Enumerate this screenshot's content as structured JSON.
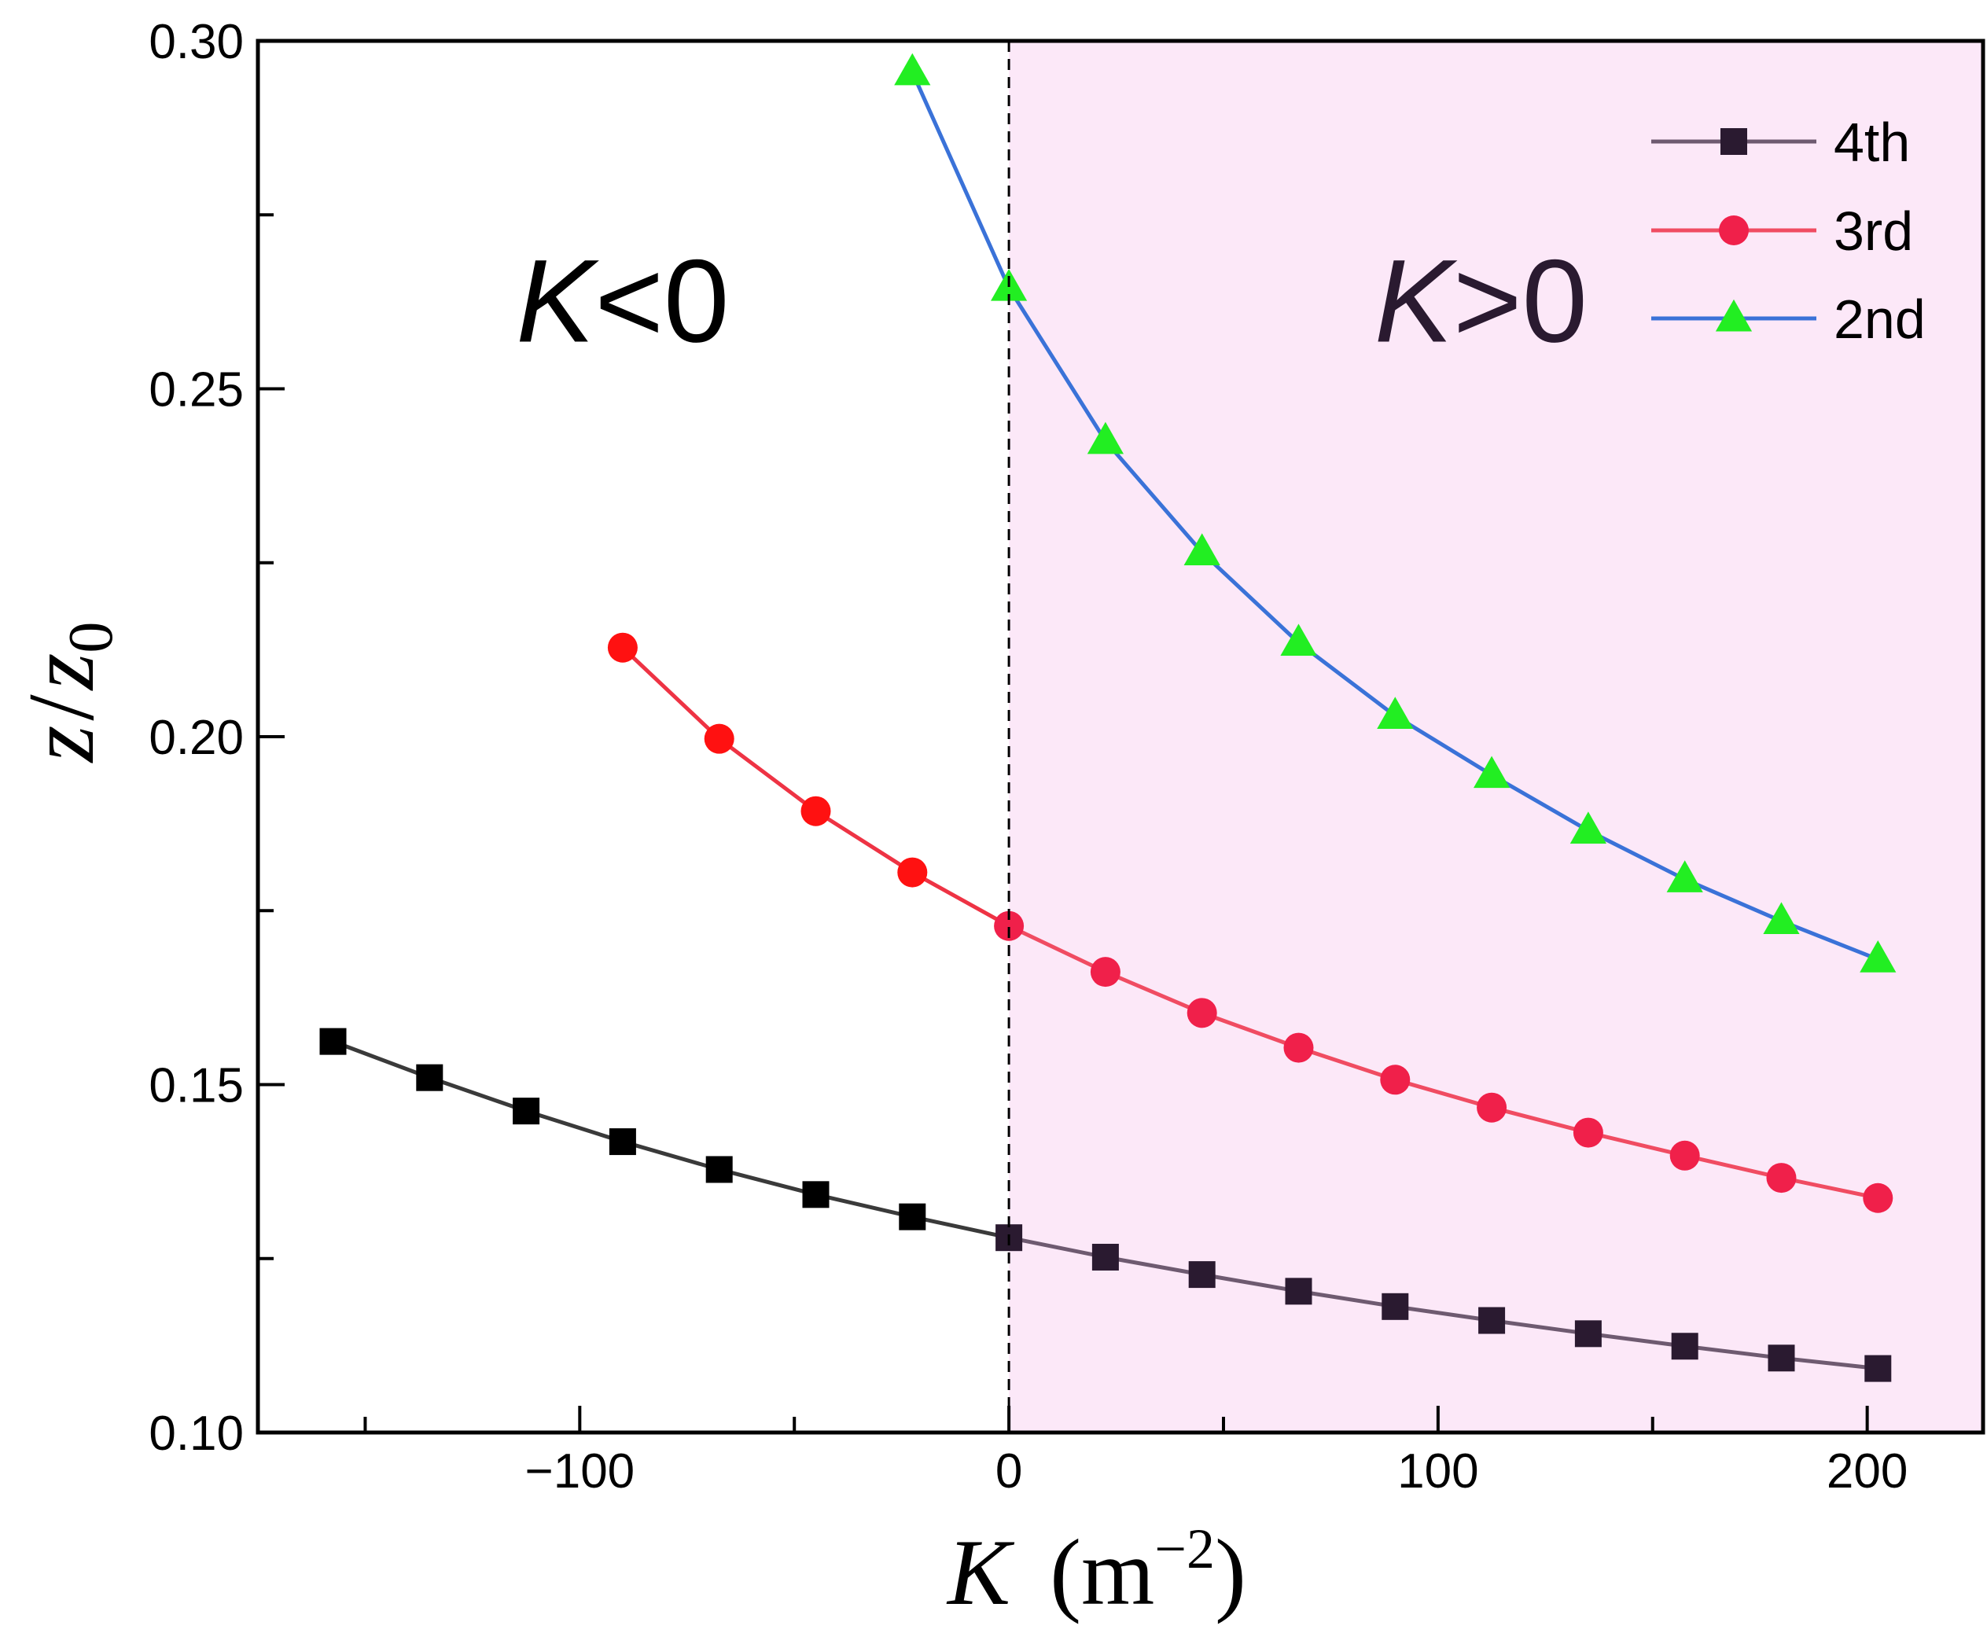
{
  "chart_data": {
    "type": "line",
    "xlabel": "K (m^-2)",
    "xlabel_var": "K",
    "xlabel_unit": "m",
    "xlabel_exp": "−2",
    "ylabel_num": "z",
    "ylabel_den": "z",
    "ylabel_den_sub": "0",
    "xlim": [
      -175,
      227
    ],
    "ylim": [
      0.1,
      0.3
    ],
    "xticks": [
      -100,
      0,
      100,
      200
    ],
    "xtick_labels": [
      "−100",
      "0",
      "100",
      "200"
    ],
    "yticks": [
      0.1,
      0.15,
      0.2,
      0.25,
      0.3
    ],
    "ytick_labels": [
      "0.10",
      "0.15",
      "0.20",
      "0.25",
      "0.30"
    ],
    "divider_x": 0,
    "shaded_region": {
      "from": 0,
      "to": 227,
      "color": "#fce8f8"
    },
    "region_labels": [
      {
        "text_var": "K",
        "text_rest": "<0",
        "x": -90,
        "y": 0.263
      },
      {
        "text_var": "K",
        "text_rest": ">0",
        "x": 110,
        "y": 0.263
      }
    ],
    "legend_position": "top-right",
    "series": [
      {
        "name": "4th",
        "marker": "square",
        "line_color_left": "#3a3a3a",
        "line_color_right": "#6e5a70",
        "marker_color_left": "#000000",
        "marker_color_right": "#2a1a30",
        "x": [
          -157.5,
          -135,
          -112.5,
          -90,
          -67.5,
          -45,
          -22.5,
          0,
          22.5,
          45,
          67.5,
          90,
          112.5,
          135,
          157.5,
          180,
          202.5
        ],
        "y": [
          0.1562,
          0.151,
          0.1462,
          0.1418,
          0.1378,
          0.1342,
          0.131,
          0.128,
          0.1252,
          0.1227,
          0.1203,
          0.1181,
          0.1161,
          0.1142,
          0.1124,
          0.1107,
          0.1092
        ]
      },
      {
        "name": "3rd",
        "marker": "circle",
        "line_color_left": "#ee3344",
        "line_color_right": "#f04c62",
        "marker_color_left": "#ff1111",
        "marker_color_right": "#f0204a",
        "x": [
          -90,
          -67.5,
          -45,
          -22.5,
          0,
          22.5,
          45,
          67.5,
          90,
          112.5,
          135,
          157.5,
          180,
          202.5
        ],
        "y": [
          0.2128,
          0.1997,
          0.1893,
          0.1805,
          0.1728,
          0.1662,
          0.1603,
          0.1553,
          0.1507,
          0.1467,
          0.1431,
          0.1398,
          0.1366,
          0.1337
        ]
      },
      {
        "name": "2nd",
        "marker": "triangle",
        "line_color": "#3a72d8",
        "marker_color": "#22ee22",
        "x": [
          -22.5,
          0,
          22.5,
          45,
          67.5,
          90,
          112.5,
          135,
          157.5,
          180,
          202.5
        ],
        "y": [
          0.2955,
          0.2645,
          0.2425,
          0.2265,
          0.2135,
          0.203,
          0.1945,
          0.1865,
          0.1795,
          0.1735,
          0.168
        ]
      }
    ]
  }
}
